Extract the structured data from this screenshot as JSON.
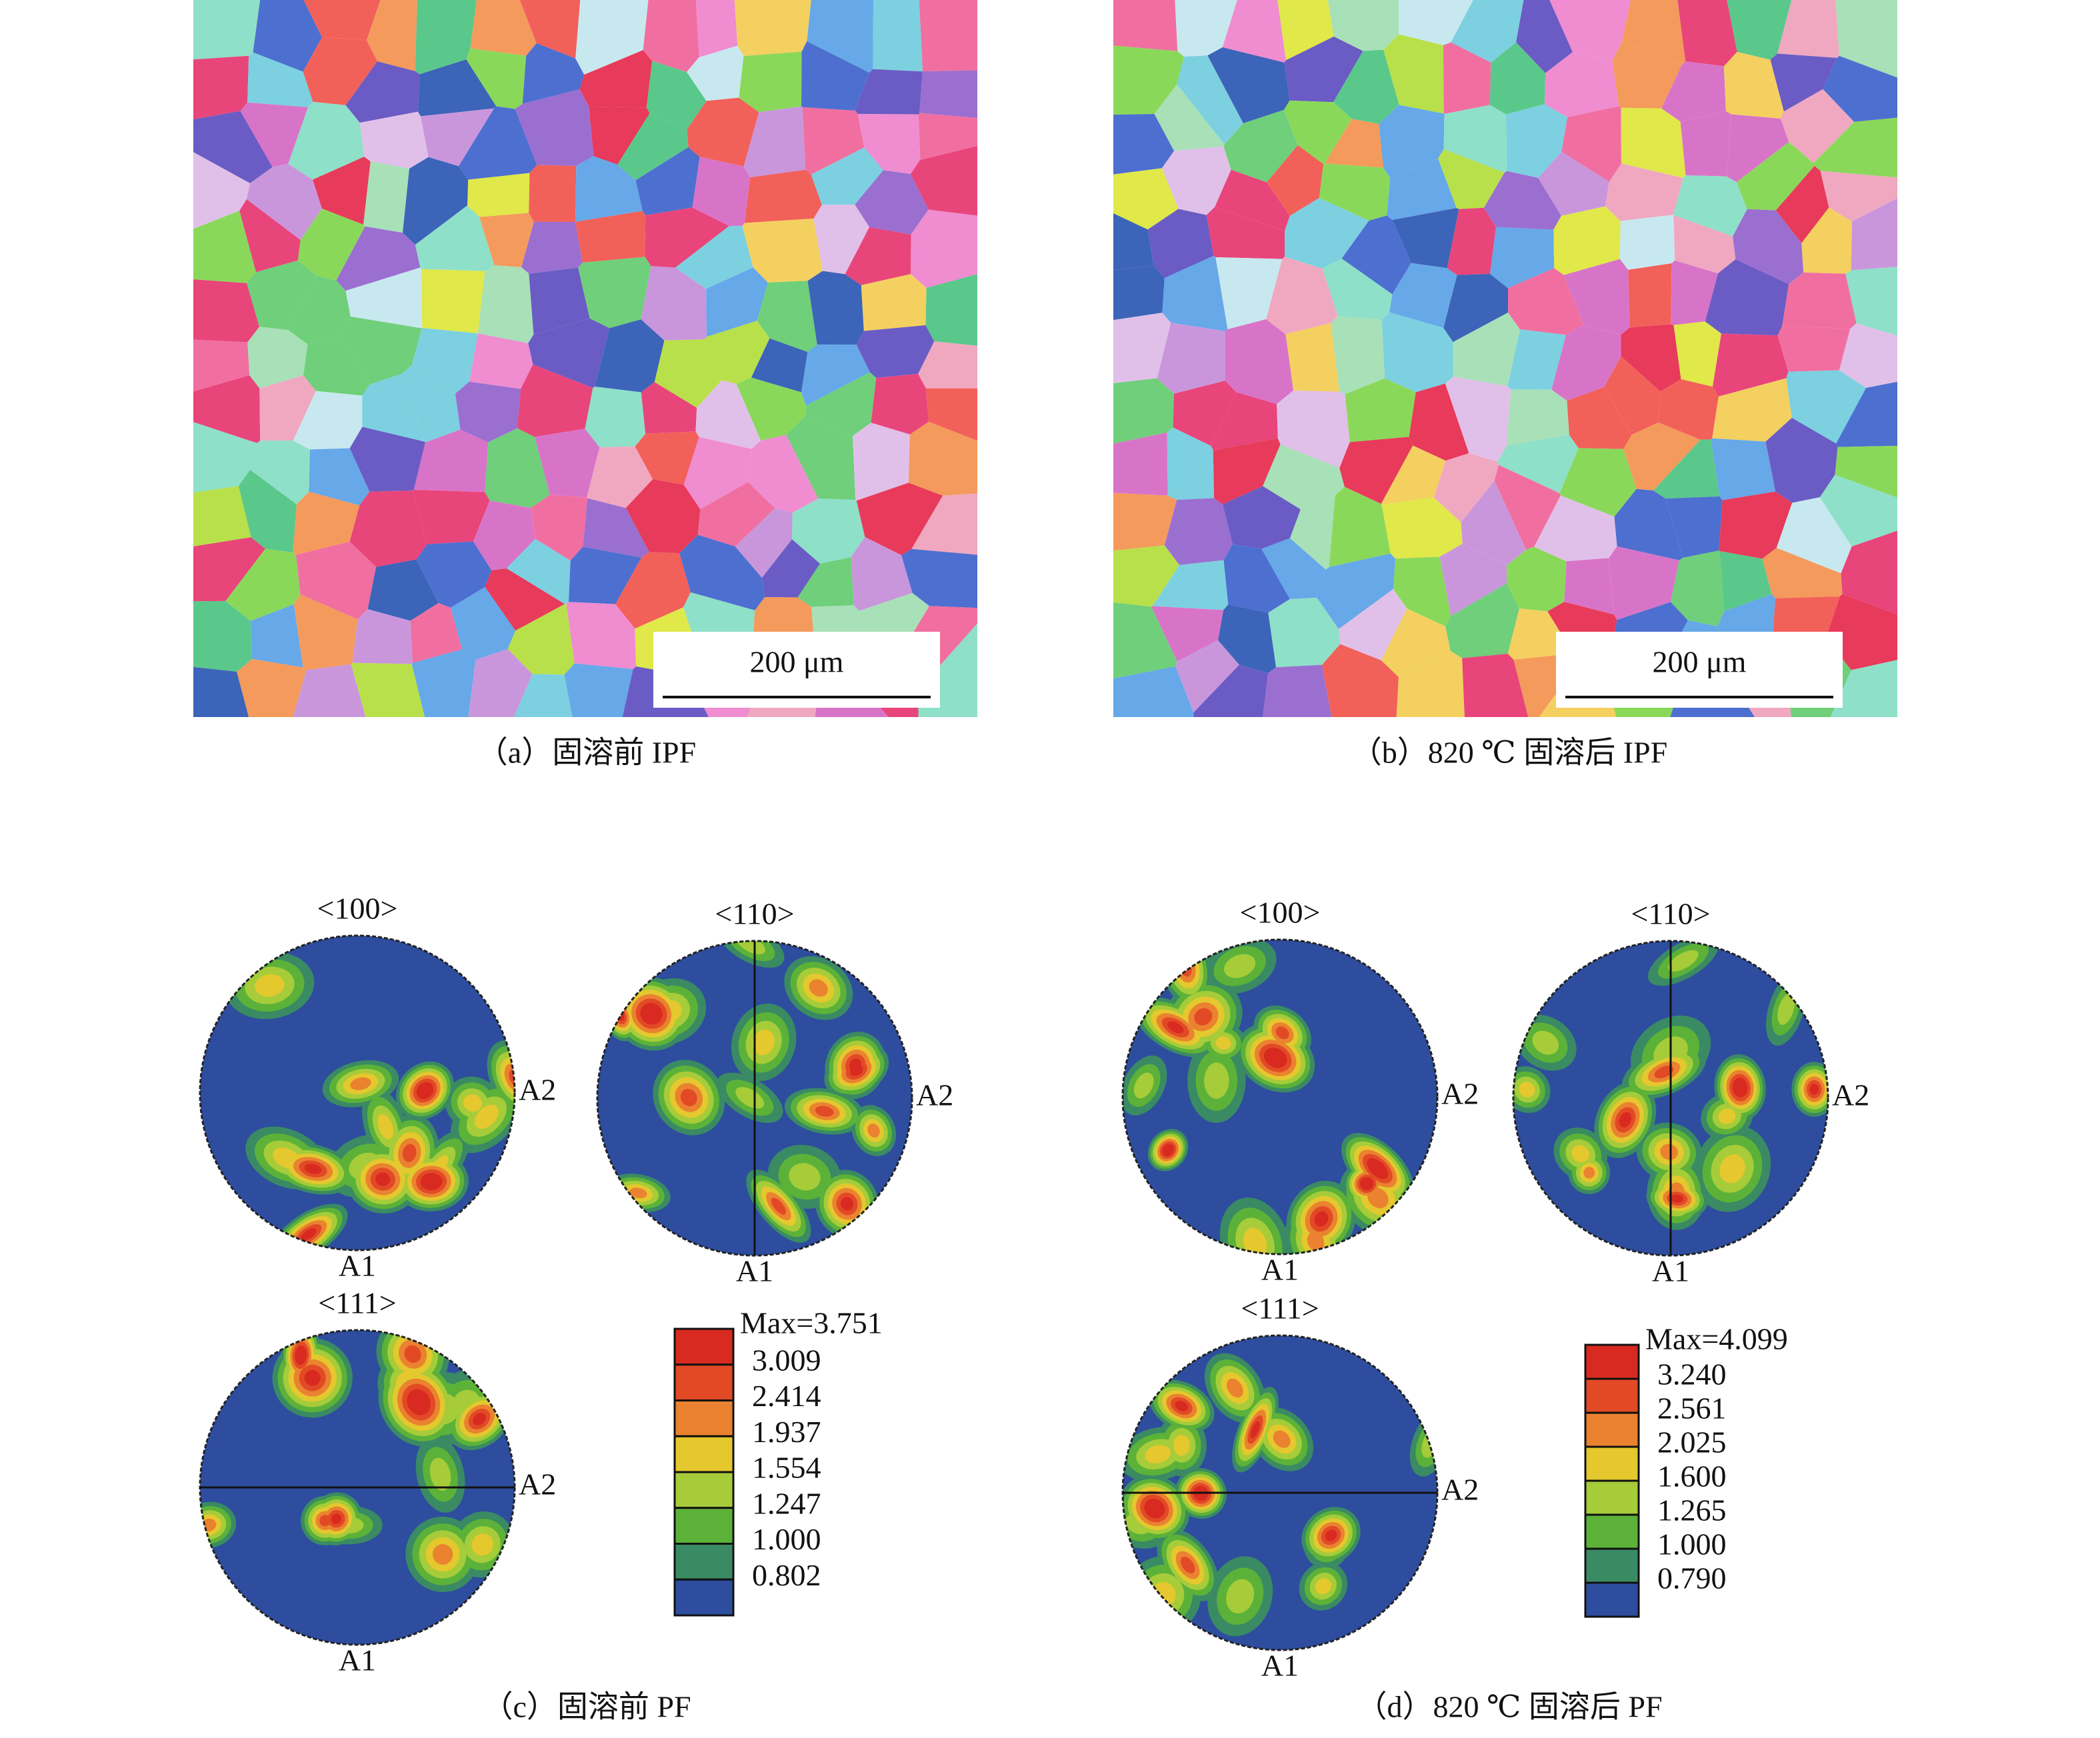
{
  "ipf_panels": [
    {
      "caption": "（a）固溶前 IPF",
      "scale_bar": "200 μm"
    },
    {
      "caption": "（b）820 ℃ 固溶后 IPF",
      "scale_bar": "200 μm"
    }
  ],
  "pf_panels": [
    {
      "caption": "（c）固溶前 PF",
      "plots": [
        {
          "title": "<100>",
          "right_label": "A2",
          "bottom_label": "A1"
        },
        {
          "title": "<110>",
          "right_label": "A2",
          "bottom_label": "A1"
        },
        {
          "title": "<111>",
          "right_label": "A2",
          "bottom_label": "A1"
        }
      ],
      "legend": {
        "max": "Max=3.751",
        "levels": [
          "3.009",
          "2.414",
          "1.937",
          "1.554",
          "1.247",
          "1.000",
          "0.802"
        ],
        "colors": [
          "#d82a20",
          "#e24a26",
          "#ea8230",
          "#e4c82e",
          "#a6cc3a",
          "#5cb238",
          "#3a8a64",
          "#2e4d9e"
        ]
      }
    },
    {
      "caption": "（d）820 ℃ 固溶后 PF",
      "plots": [
        {
          "title": "<100>",
          "right_label": "A2",
          "bottom_label": "A1"
        },
        {
          "title": "<110>",
          "right_label": "A2",
          "bottom_label": "A1"
        },
        {
          "title": "<111>",
          "right_label": "A2",
          "bottom_label": "A1"
        }
      ],
      "legend": {
        "max": "Max=4.099",
        "levels": [
          "3.240",
          "2.561",
          "2.025",
          "1.600",
          "1.265",
          "1.000",
          "0.790"
        ],
        "colors": [
          "#d82a20",
          "#e24a26",
          "#ea8230",
          "#e4c82e",
          "#a6cc3a",
          "#5cb238",
          "#3a8a64",
          "#2e4d9e"
        ]
      }
    }
  ]
}
